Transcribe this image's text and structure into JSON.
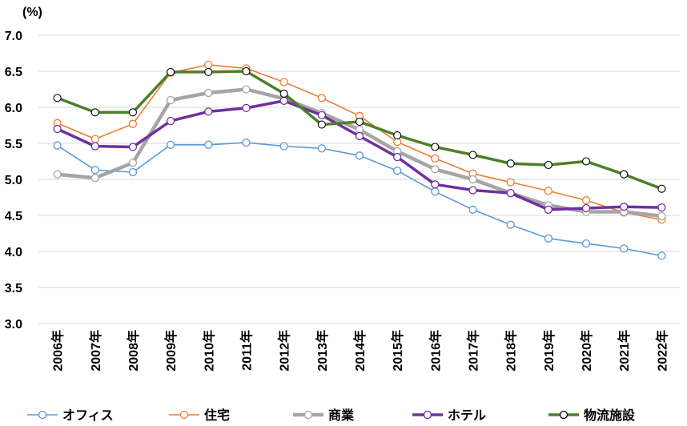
{
  "chart_data": {
    "type": "line",
    "ylabel_unit": "(%)",
    "ylim": [
      3.0,
      7.0
    ],
    "yticks": [
      "3.0",
      "3.5",
      "4.0",
      "4.5",
      "5.0",
      "5.5",
      "6.0",
      "6.5",
      "7.0"
    ],
    "categories": [
      "2006年",
      "2007年",
      "2008年",
      "2009年",
      "2010年",
      "2011年",
      "2012年",
      "2013年",
      "2014年",
      "2015年",
      "2016年",
      "2017年",
      "2018年",
      "2019年",
      "2020年",
      "2021年",
      "2022年"
    ],
    "grid": "horizontal",
    "legend_position": "bottom",
    "series": [
      {
        "name": "オフィス",
        "color": "#5b9bd5",
        "width": 1.6,
        "values": [
          5.47,
          5.13,
          5.1,
          5.48,
          5.48,
          5.51,
          5.46,
          5.43,
          5.33,
          5.12,
          4.83,
          4.58,
          4.37,
          4.18,
          4.11,
          4.04,
          3.94
        ]
      },
      {
        "name": "住宅",
        "color": "#ed7d31",
        "width": 1.6,
        "values": [
          5.78,
          5.56,
          5.77,
          6.48,
          6.59,
          6.54,
          6.35,
          6.13,
          5.88,
          5.52,
          5.29,
          5.08,
          4.96,
          4.84,
          4.71,
          4.54,
          4.44
        ]
      },
      {
        "name": "商業",
        "color": "#a5a5a5",
        "width": 4.5,
        "values": [
          5.07,
          5.02,
          5.23,
          6.1,
          6.2,
          6.25,
          6.12,
          5.92,
          5.69,
          5.39,
          5.14,
          5.0,
          4.81,
          4.64,
          4.55,
          4.55,
          4.49
        ]
      },
      {
        "name": "ホテル",
        "color": "#7030a0",
        "width": 3.5,
        "values": [
          5.7,
          5.46,
          5.45,
          5.81,
          5.94,
          5.99,
          6.09,
          5.89,
          5.6,
          5.31,
          4.93,
          4.85,
          4.81,
          4.58,
          4.6,
          4.62,
          4.61
        ]
      },
      {
        "name": "物流施設",
        "color": "#4d7f2b",
        "width": 3.5,
        "values": [
          6.13,
          5.93,
          5.93,
          6.49,
          6.49,
          6.5,
          6.19,
          5.76,
          5.8,
          5.61,
          5.45,
          5.34,
          5.22,
          5.2,
          5.25,
          5.07,
          4.87
        ]
      }
    ]
  }
}
